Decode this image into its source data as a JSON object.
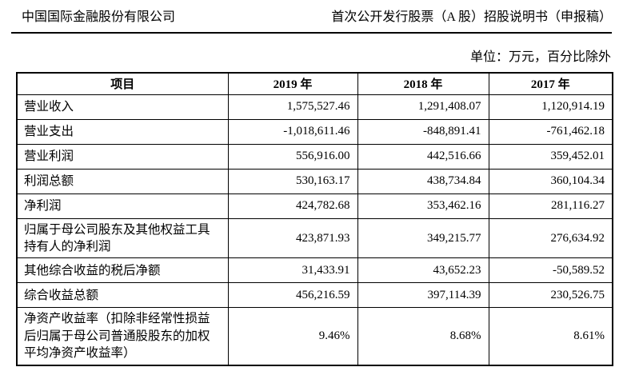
{
  "page": {
    "header_left": "中国国际金融股份有限公司",
    "header_right": "首次公开发行股票（A 股）招股说明书（申报稿）",
    "unit_note": "单位：万元，百分比除外"
  },
  "table": {
    "columns": [
      "项目",
      "2019 年",
      "2018 年",
      "2017 年"
    ],
    "rows": [
      {
        "label": "营业收入",
        "values": [
          "1,575,527.46",
          "1,291,408.07",
          "1,120,914.19"
        ]
      },
      {
        "label": "营业支出",
        "values": [
          "-1,018,611.46",
          "-848,891.41",
          "-761,462.18"
        ]
      },
      {
        "label": "营业利润",
        "values": [
          "556,916.00",
          "442,516.66",
          "359,452.01"
        ]
      },
      {
        "label": "利润总额",
        "values": [
          "530,163.17",
          "438,734.84",
          "360,104.34"
        ]
      },
      {
        "label": "净利润",
        "values": [
          "424,782.68",
          "353,462.16",
          "281,116.27"
        ]
      },
      {
        "label": "归属于母公司股东及其他权益工具持有人的净利润",
        "values": [
          "423,871.93",
          "349,215.77",
          "276,634.92"
        ]
      },
      {
        "label": "其他综合收益的税后净额",
        "values": [
          "31,433.91",
          "43,652.23",
          "-50,589.52"
        ]
      },
      {
        "label": "综合收益总额",
        "values": [
          "456,216.59",
          "397,114.39",
          "230,526.75"
        ]
      },
      {
        "label": "净资产收益率（扣除非经常性损益后归属于母公司普通股股东的加权平均净资产收益率）",
        "values": [
          "9.46%",
          "8.68%",
          "8.61%"
        ]
      }
    ]
  },
  "colors": {
    "text": "#000000",
    "background": "#ffffff",
    "border": "#000000"
  }
}
